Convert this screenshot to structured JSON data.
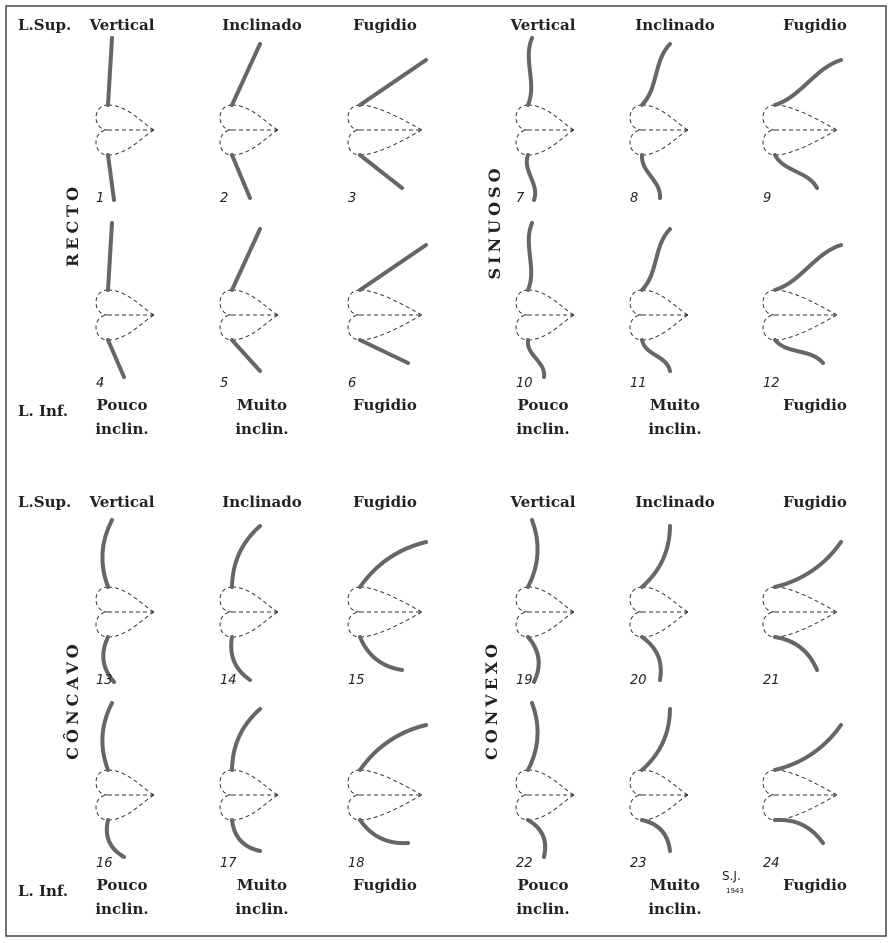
{
  "panels": [
    {
      "upper_label": "L.Sup.",
      "headers": [
        "Vertical",
        "Inclinado",
        "Fugidio",
        "Vertical",
        "Inclinado",
        "Fugidio"
      ],
      "groups": [
        {
          "label": "RECTO",
          "figures": [
            "1",
            "2",
            "3",
            "4",
            "5",
            "6"
          ]
        },
        {
          "label": "SINUOSO",
          "figures": [
            "7",
            "8",
            "9",
            "10",
            "11",
            "12"
          ]
        }
      ],
      "lower_label": "L. Inf.",
      "footers": [
        [
          "Pouco",
          "inclin."
        ],
        [
          "Muito",
          "inclin."
        ],
        [
          "Fugidio"
        ],
        [
          "Pouco",
          "inclin."
        ],
        [
          "Muito",
          "inclin."
        ],
        [
          "Fugidio"
        ]
      ]
    },
    {
      "upper_label": "L.Sup.",
      "headers": [
        "Vertical",
        "Inclinado",
        "Fugidio",
        "Vertical",
        "Inclinado",
        "Fugidio"
      ],
      "groups": [
        {
          "label": "CÔNCAVO",
          "figures": [
            "13",
            "14",
            "15",
            "16",
            "17",
            "18"
          ]
        },
        {
          "label": "CONVEXO",
          "figures": [
            "19",
            "20",
            "21",
            "22",
            "23",
            "24"
          ]
        }
      ],
      "lower_label": "L. Inf.",
      "footers": [
        [
          "Pouco",
          "inclin."
        ],
        [
          "Muito",
          "inclin."
        ],
        [
          "Fugidio"
        ],
        [
          "Pouco",
          "inclin."
        ],
        [
          "Muito",
          "inclin."
        ],
        [
          "Fugidio"
        ]
      ]
    }
  ],
  "signature": {
    "initials": "S.J.",
    "year": "1943"
  }
}
